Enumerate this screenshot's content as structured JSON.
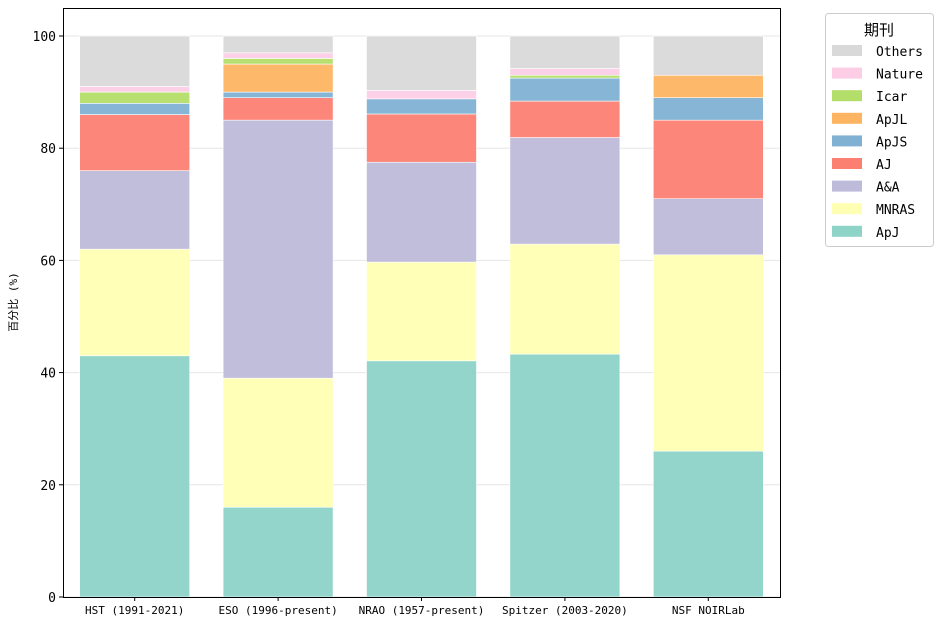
{
  "chart_data": {
    "type": "bar",
    "stacked": true,
    "title": "",
    "xlabel": "",
    "ylabel": "百分比 (%)",
    "ylim": [
      0,
      105
    ],
    "yticks": [
      0,
      20,
      40,
      60,
      80,
      100
    ],
    "grid": "y",
    "categories": [
      "HST (1991-2021)",
      "ESO (1996-present)",
      "NRAO (1957-present)",
      "Spitzer (2003-2020)",
      "NSF NOIRLab"
    ],
    "legend": {
      "title": "期刊",
      "placement": "outside-top-right"
    },
    "series": [
      {
        "name": "ApJ",
        "color": "#8dd3c7",
        "values": [
          43.0,
          16.0,
          42.1,
          43.3,
          26.0
        ]
      },
      {
        "name": "MNRAS",
        "color": "#ffffb3",
        "values": [
          19.0,
          23.0,
          17.6,
          19.6,
          35.0
        ]
      },
      {
        "name": "A&A",
        "color": "#bebada",
        "values": [
          14.0,
          46.0,
          17.8,
          19.0,
          10.0
        ]
      },
      {
        "name": "AJ",
        "color": "#fb8072",
        "values": [
          10.0,
          4.0,
          8.6,
          6.5,
          14.0
        ]
      },
      {
        "name": "ApJS",
        "color": "#80b1d3",
        "values": [
          2.0,
          1.0,
          2.7,
          4.1,
          4.0
        ]
      },
      {
        "name": "ApJL",
        "color": "#fdb462",
        "values": [
          0.0,
          5.0,
          0.0,
          0.0,
          4.0
        ]
      },
      {
        "name": "Icar",
        "color": "#b3de69",
        "values": [
          2.0,
          1.0,
          0.0,
          0.5,
          0.0
        ]
      },
      {
        "name": "Nature",
        "color": "#fccde5",
        "values": [
          1.0,
          1.0,
          1.5,
          1.2,
          0.0
        ]
      },
      {
        "name": "Others",
        "color": "#d9d9d9",
        "values": [
          9.0,
          3.0,
          9.7,
          5.8,
          7.0
        ]
      }
    ]
  }
}
